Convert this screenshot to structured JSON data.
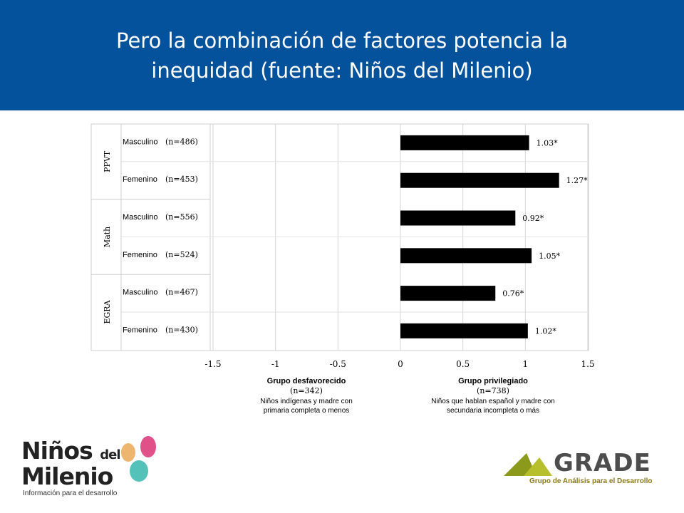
{
  "slide": {
    "title_line1": "Pero la combinación de factores potencia la",
    "title_line2": "inequidad (fuente: Niños del Milenio)"
  },
  "chart_data": {
    "type": "bar",
    "orientation": "horizontal",
    "xlim": [
      -1.5,
      1.5
    ],
    "xticks": [
      "-1.5",
      "-1",
      "-0.5",
      "0",
      "0.5",
      "1",
      "1.5"
    ],
    "groups": [
      {
        "name": "PPVT",
        "rows": [
          {
            "label": "Masculino",
            "n": "(n=486)",
            "value": 1.03,
            "value_label": "1.03*"
          },
          {
            "label": "Femenino",
            "n": "(n=453)",
            "value": 1.27,
            "value_label": "1.27*"
          }
        ]
      },
      {
        "name": "Math",
        "rows": [
          {
            "label": "Masculino",
            "n": "(n=556)",
            "value": 0.92,
            "value_label": "0.92*"
          },
          {
            "label": "Femenino",
            "n": "(n=524)",
            "value": 1.05,
            "value_label": "1.05*"
          }
        ]
      },
      {
        "name": "EGRA",
        "rows": [
          {
            "label": "Masculino",
            "n": "(n=467)",
            "value": 0.76,
            "value_label": "0.76*"
          },
          {
            "label": "Femenino",
            "n": "(n=430)",
            "value": 1.02,
            "value_label": "1.02*"
          }
        ]
      }
    ],
    "left_caption": {
      "title": "Grupo desfavorecido",
      "n": "(n=342)",
      "line1": "Niños indígenas y madre con",
      "line2": "primaria completa o menos"
    },
    "right_caption": {
      "title": "Grupo privilegiado",
      "n": "(n=738)",
      "line1": "Niños que hablan español y madre con",
      "line2": "secundaria incompleta o más"
    },
    "bar_color": "#000000",
    "grid": true
  },
  "logos": {
    "left": {
      "line1": "Niños",
      "del": "del",
      "line2": "Milenio",
      "tagline": "Información para el desarrollo"
    },
    "right": {
      "name": "GRADE",
      "tagline": "Grupo de Análisis para el Desarrollo"
    }
  }
}
